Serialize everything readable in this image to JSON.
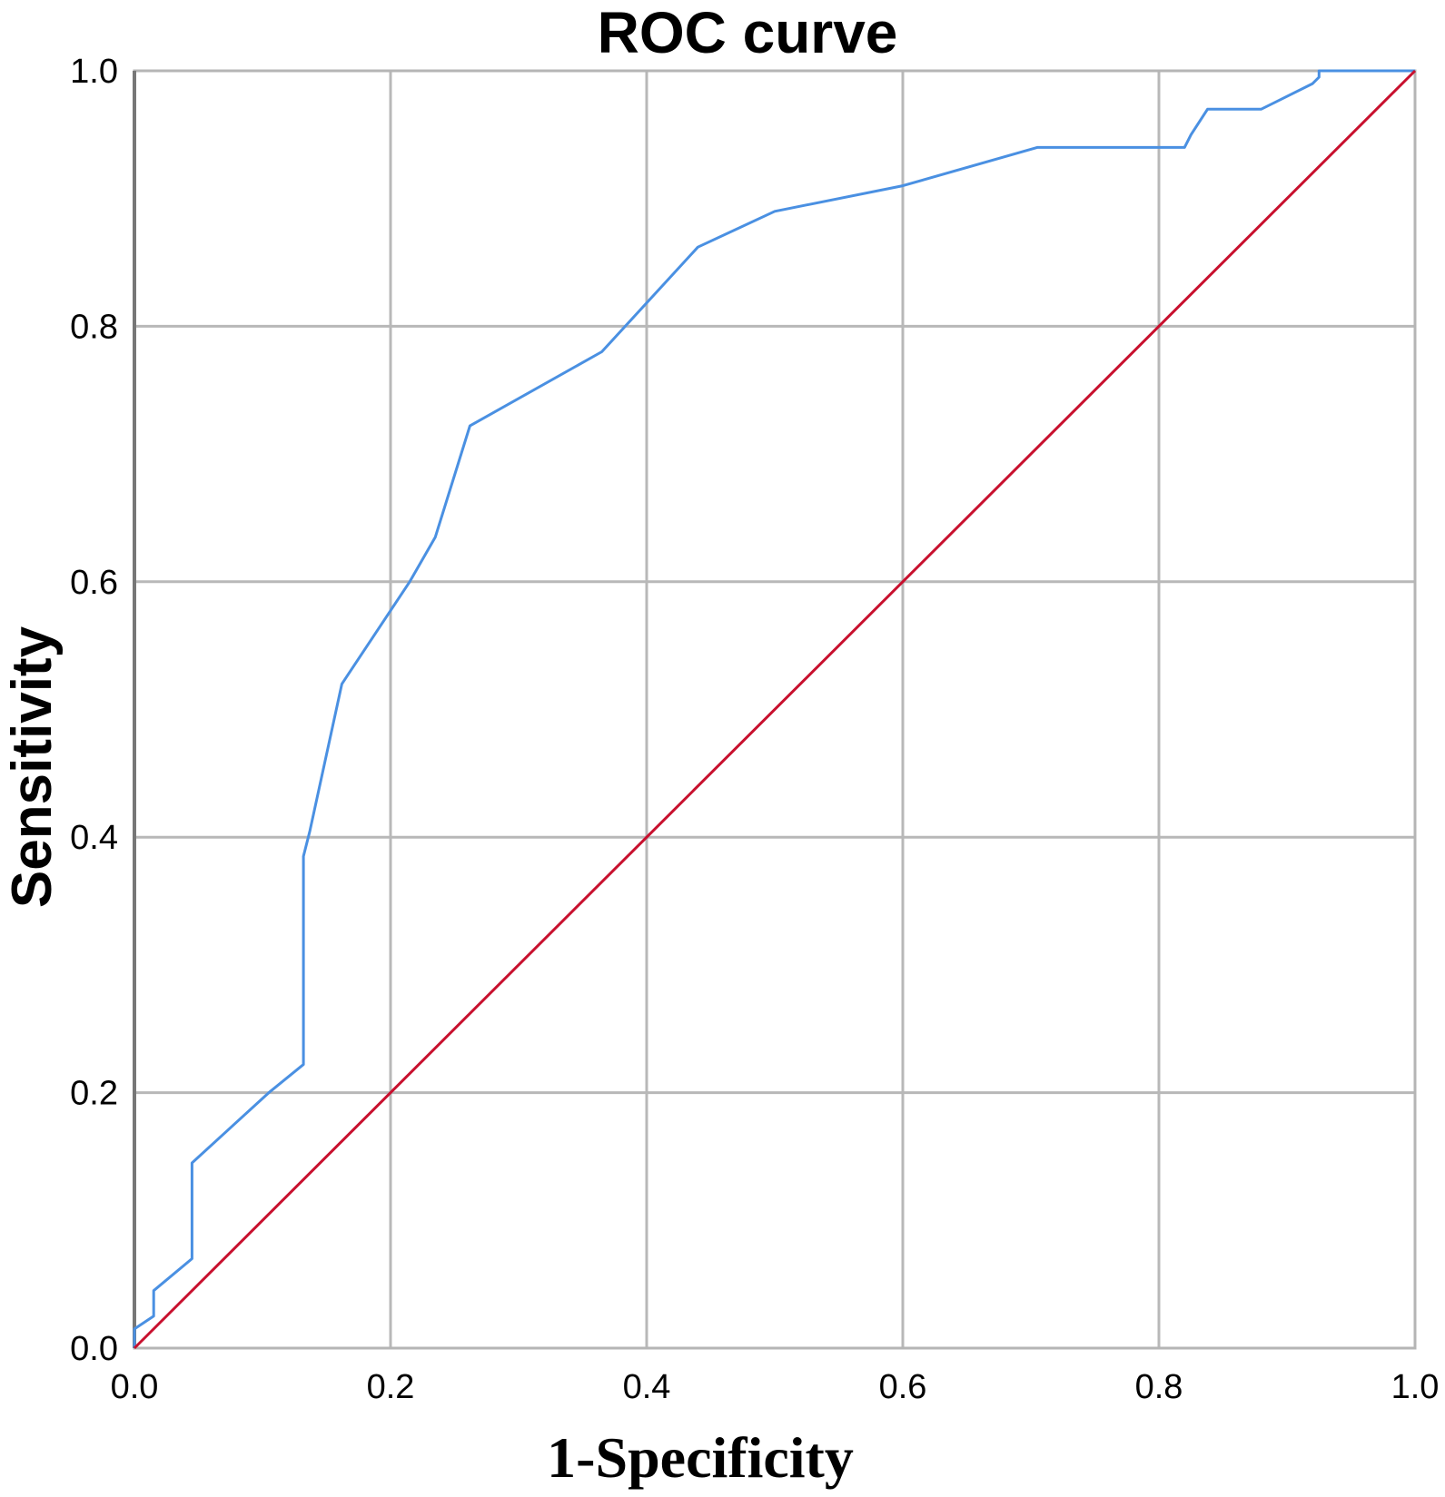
{
  "chart_data": {
    "type": "line",
    "title": "ROC curve",
    "xlabel": "1-Specificity",
    "ylabel": "Sensitivity",
    "xlim": [
      0.0,
      1.0
    ],
    "ylim": [
      0.0,
      1.0
    ],
    "x_ticks": [
      "0.0",
      "0.2",
      "0.4",
      "0.6",
      "0.8",
      "1.0"
    ],
    "y_ticks": [
      "0.0",
      "0.2",
      "0.4",
      "0.6",
      "0.8",
      "1.0"
    ],
    "grid": true,
    "series": [
      {
        "color": "#4a90e2",
        "x": [
          0.0,
          0.0,
          0.015,
          0.015,
          0.045,
          0.045,
          0.105,
          0.132,
          0.132,
          0.137,
          0.162,
          0.215,
          0.235,
          0.262,
          0.365,
          0.44,
          0.5,
          0.6,
          0.705,
          0.82,
          0.825,
          0.838,
          0.88,
          0.92,
          0.925,
          0.925,
          1.0
        ],
        "y": [
          0.0,
          0.015,
          0.025,
          0.045,
          0.07,
          0.145,
          0.2,
          0.222,
          0.385,
          0.405,
          0.52,
          0.6,
          0.635,
          0.722,
          0.78,
          0.862,
          0.89,
          0.91,
          0.94,
          0.94,
          0.95,
          0.97,
          0.97,
          0.99,
          0.995,
          1.0,
          1.0
        ]
      },
      {
        "color": "#c8102e",
        "x": [
          0.0,
          1.0
        ],
        "y": [
          0.0,
          1.0
        ]
      }
    ]
  }
}
